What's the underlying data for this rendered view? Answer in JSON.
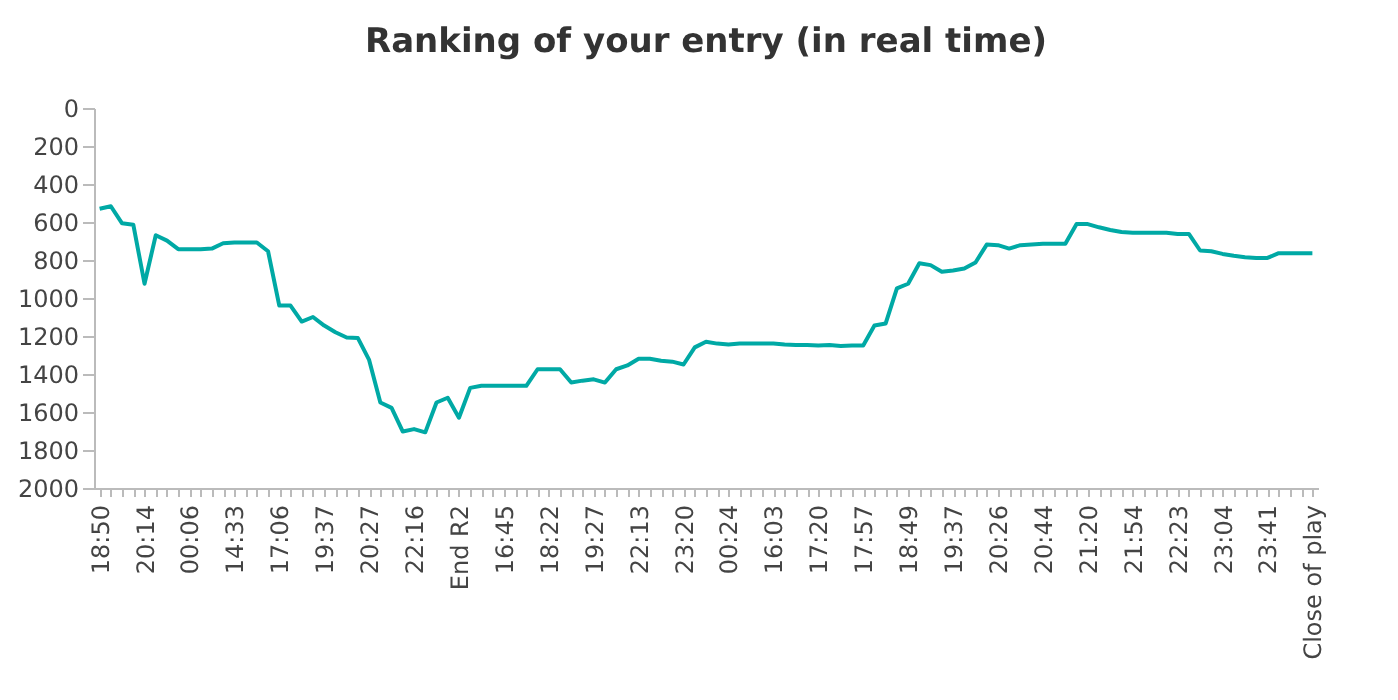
{
  "chart_data": {
    "type": "line",
    "title": "Ranking of your entry (in real time)",
    "categories": [
      "18:50",
      null,
      null,
      null,
      "20:14",
      null,
      null,
      null,
      "00:06",
      null,
      null,
      null,
      "14:33",
      null,
      null,
      null,
      "17:06",
      null,
      null,
      null,
      "19:37",
      null,
      null,
      null,
      "20:27",
      null,
      null,
      null,
      "22:16",
      null,
      null,
      null,
      "End R2",
      null,
      null,
      null,
      "16:45",
      null,
      null,
      null,
      "18:22",
      null,
      null,
      null,
      "19:27",
      null,
      null,
      null,
      "22:13",
      null,
      null,
      null,
      "23:20",
      null,
      null,
      null,
      "00:24",
      null,
      null,
      null,
      "16:03",
      null,
      null,
      null,
      "17:20",
      null,
      null,
      null,
      "17:57",
      null,
      null,
      null,
      "18:49",
      null,
      null,
      null,
      "19:37",
      null,
      null,
      null,
      "20:26",
      null,
      null,
      null,
      "20:44",
      null,
      null,
      null,
      "21:20",
      null,
      null,
      null,
      "21:54",
      null,
      null,
      null,
      "22:23",
      null,
      null,
      null,
      "23:04",
      null,
      null,
      null,
      "23:41",
      null,
      null,
      null,
      "Close of play"
    ],
    "series": [
      {
        "color": "#00a9a5",
        "values": [
          530,
          517,
          607,
          614,
          925,
          670,
          698,
          743,
          743,
          743,
          740,
          712,
          708,
          708,
          708,
          754,
          1040,
          1040,
          1124,
          1100,
          1145,
          1180,
          1208,
          1211,
          1326,
          1550,
          1578,
          1703,
          1690,
          1707,
          1550,
          1525,
          1630,
          1473,
          1462,
          1462,
          1462,
          1462,
          1462,
          1375,
          1375,
          1375,
          1445,
          1435,
          1428,
          1445,
          1375,
          1355,
          1320,
          1320,
          1330,
          1335,
          1350,
          1260,
          1230,
          1240,
          1245,
          1240,
          1240,
          1240,
          1240,
          1245,
          1248,
          1248,
          1250,
          1248,
          1252,
          1250,
          1250,
          1145,
          1134,
          949,
          925,
          817,
          827,
          862,
          855,
          845,
          813,
          719,
          722,
          740,
          722,
          719,
          715,
          715,
          715,
          611,
          611,
          628,
          642,
          653,
          656,
          656,
          656,
          656,
          663,
          663,
          750,
          754,
          768,
          778,
          785,
          789,
          789,
          764,
          764,
          764,
          764
        ]
      }
    ],
    "ylim": [
      2000,
      0
    ],
    "yticks": [
      0,
      200,
      400,
      600,
      800,
      1000,
      1200,
      1400,
      1600,
      1800,
      2000
    ],
    "grid": false,
    "legend": false
  }
}
